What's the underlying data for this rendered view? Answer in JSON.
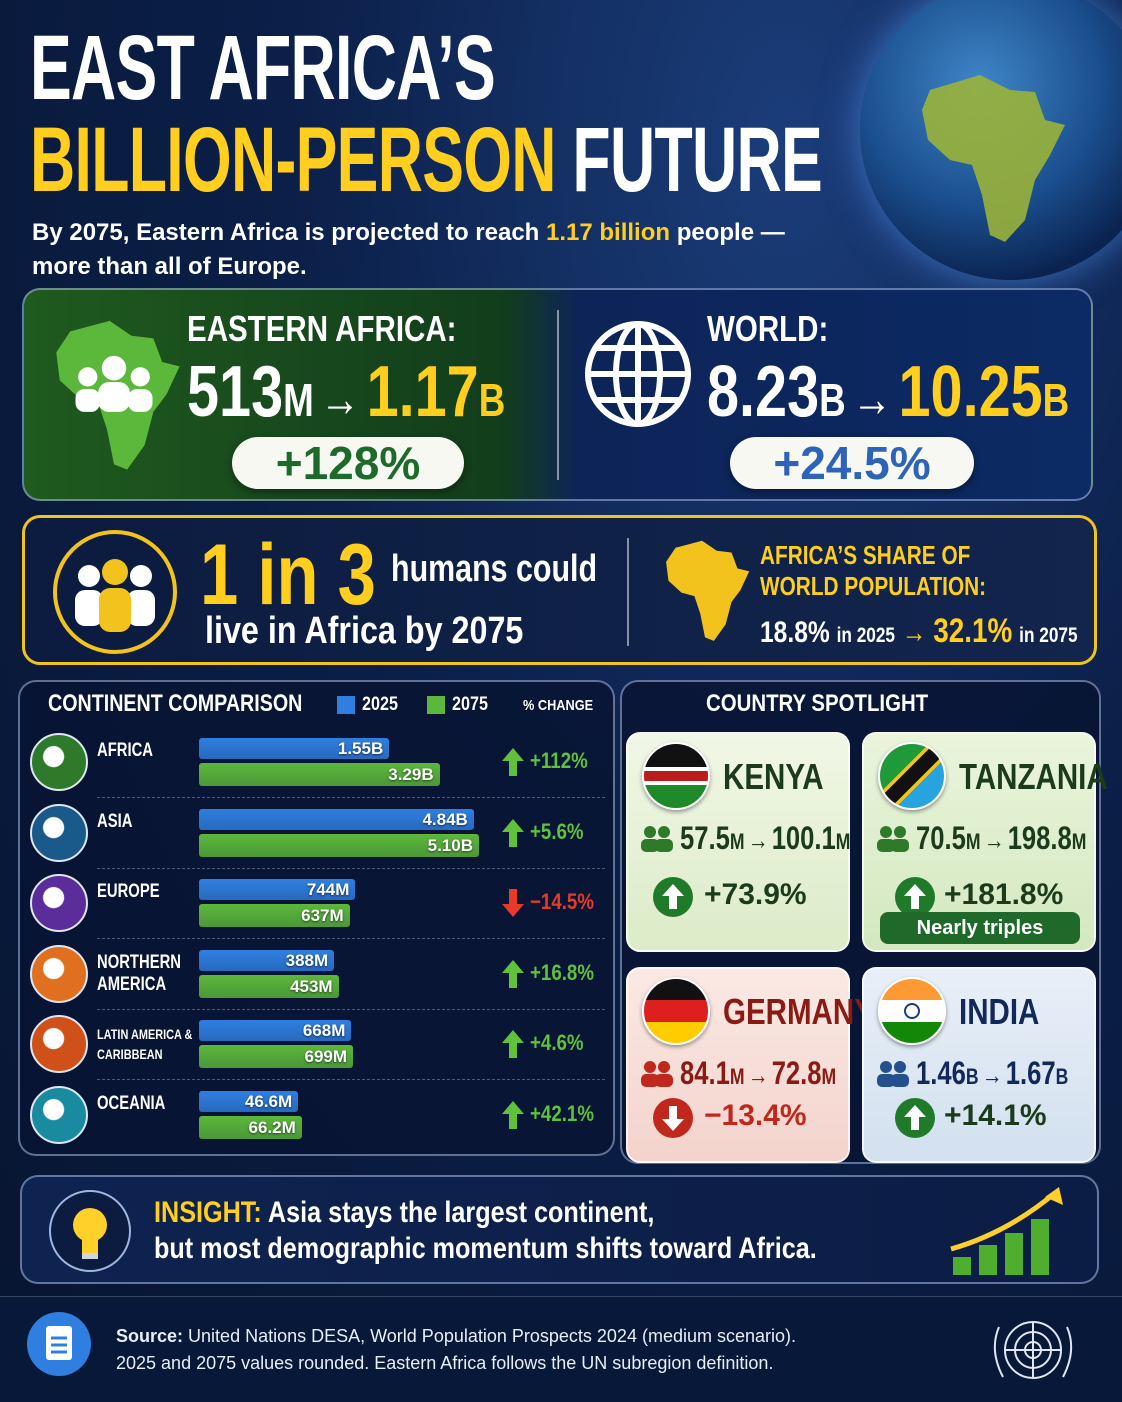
{
  "header": {
    "title_line1": "EAST AFRICA’S",
    "title_highlight": "BILLION-PERSON",
    "title_rest": "FUTURE",
    "subtitle_line1_before": "By 2075, Eastern Africa is projected to reach",
    "subtitle_highlight": "1.17 billion",
    "subtitle_line1_after": "people —",
    "subtitle_line2": "more than all of Europe."
  },
  "arrow": "→",
  "summary": [
    {
      "label": "EASTERN AFRICA:",
      "from": "513",
      "from_unit": "M",
      "to": "1.17",
      "to_unit": "B",
      "change": "+128%"
    },
    {
      "label": "WORLD:",
      "from": "8.23",
      "from_unit": "B",
      "to": "10.25",
      "to_unit": "B",
      "change": "+24.5%"
    }
  ],
  "highlight": {
    "big": "1 in 3",
    "small": "humans could",
    "line2": "live in Africa by 2075",
    "share_title": "AFRICA’S SHARE OF WORLD POPULATION:",
    "from": "18.8%",
    "from_note": "in 2025",
    "to": "32.1%",
    "to_note": "in 2075"
  },
  "chart_data": {
    "type": "bar",
    "title": "CONTINENT COMPARISON",
    "categories": [
      "AFRICA",
      "ASIA",
      "EUROPE",
      "NORTHERN AMERICA",
      "LATIN AMERICA & CARIBBEAN",
      "OCEANIA"
    ],
    "series": [
      {
        "name": "2025",
        "color": "#2f7fe0",
        "values": [
          1550,
          4840,
          744,
          388,
          668,
          46.6
        ],
        "value_labels": [
          "1.55B",
          "4.84B",
          "744M",
          "388M",
          "668M",
          "46.6M"
        ]
      },
      {
        "name": "2075",
        "color": "#5cb83a",
        "values": [
          3290,
          5100,
          637,
          453,
          699,
          66.2
        ],
        "value_labels": [
          "3.29B",
          "5.10B",
          "637M",
          "453M",
          "699M",
          "66.2M"
        ]
      }
    ],
    "change": {
      "name": "% CHANGE",
      "values": [
        112,
        5.6,
        -14.5,
        16.8,
        4.6,
        42.1
      ],
      "value_labels": [
        "+112%",
        "+5.6%",
        "−14.5%",
        "+16.8%",
        "+4.6%",
        "+42.1%"
      ]
    }
  },
  "spotlight": {
    "title": "COUNTRY SPOTLIGHT",
    "countries": [
      {
        "name": "KENYA",
        "from": "57.5",
        "from_unit": "M",
        "to": "100.1",
        "to_unit": "M",
        "change": "+73.9%",
        "trend": "up"
      },
      {
        "name": "TANZANIA",
        "from": "70.5",
        "from_unit": "M",
        "to": "198.8",
        "to_unit": "M",
        "change": "+181.8%",
        "trend": "up",
        "note": "Nearly triples"
      },
      {
        "name": "GERMANY",
        "from": "84.1",
        "from_unit": "M",
        "to": "72.8",
        "to_unit": "M",
        "change": "−13.4%",
        "trend": "down"
      },
      {
        "name": "INDIA",
        "from": "1.46",
        "from_unit": "B",
        "to": "1.67",
        "to_unit": "B",
        "change": "+14.1%",
        "trend": "up"
      }
    ]
  },
  "insight": {
    "label": "INSIGHT:",
    "line1": "Asia stays the largest continent,",
    "line2": "but most demographic momentum shifts toward Africa."
  },
  "source": {
    "label": "Source:",
    "line1": "United Nations DESA, World Population Prospects 2024 (medium scenario).",
    "line2": "2025 and 2075 values rounded. Eastern Africa follows the UN subregion definition."
  }
}
